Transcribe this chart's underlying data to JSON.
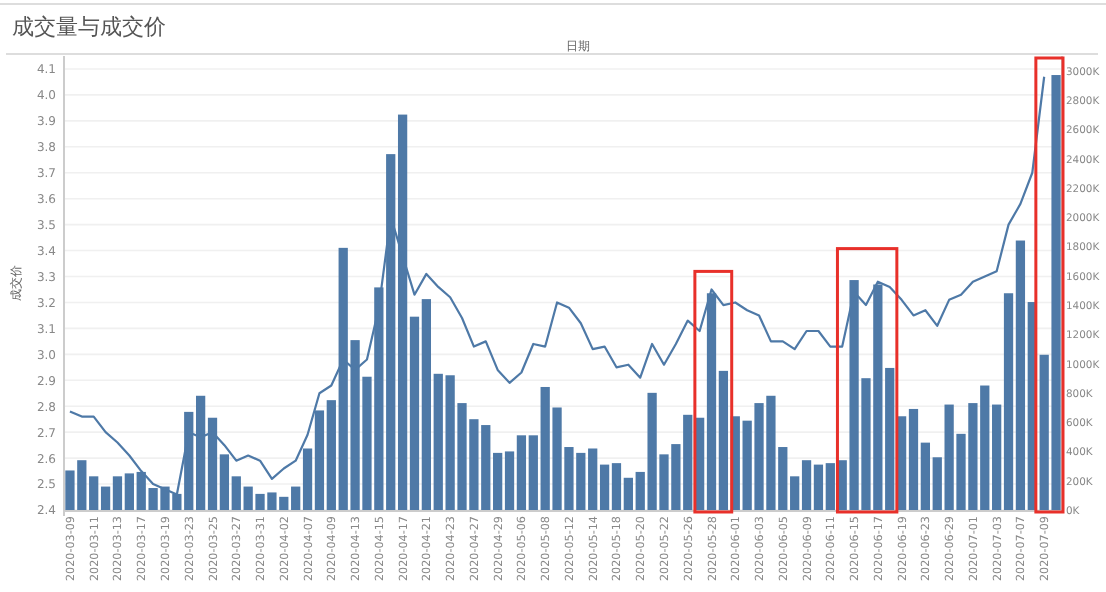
{
  "chart_data": {
    "type": "bar",
    "title": "成交量与成交价",
    "xlabel": "日期",
    "ylabel": "成交价",
    "categories": [
      "2020-03-09",
      null,
      "2020-03-11",
      null,
      "2020-03-13",
      null,
      "2020-03-17",
      null,
      "2020-03-19",
      null,
      "2020-03-23",
      null,
      "2020-03-25",
      null,
      "2020-03-27",
      null,
      "2020-03-31",
      null,
      "2020-04-02",
      null,
      "2020-04-07",
      null,
      "2020-04-09",
      null,
      "2020-04-13",
      null,
      "2020-04-15",
      null,
      "2020-04-17",
      null,
      "2020-04-21",
      null,
      "2020-04-23",
      null,
      "2020-04-27",
      null,
      "2020-04-29",
      null,
      "2020-05-06",
      null,
      "2020-05-08",
      null,
      "2020-05-12",
      null,
      "2020-05-14",
      null,
      "2020-05-18",
      null,
      "2020-05-20",
      null,
      "2020-05-22",
      null,
      "2020-05-26",
      null,
      "2020-05-28",
      null,
      "2020-06-01",
      null,
      "2020-06-03",
      null,
      "2020-06-05",
      null,
      "2020-06-09",
      null,
      "2020-06-11",
      null,
      "2020-06-15",
      null,
      "2020-06-17",
      null,
      "2020-06-19",
      null,
      "2020-06-23",
      null,
      "2020-06-29",
      null,
      "2020-07-01",
      null,
      "2020-07-03",
      null,
      "2020-07-07",
      null,
      "2020-07-09",
      null
    ],
    "series": [
      {
        "axis": "y2",
        "color": "#4e79a7",
        "values": [
          270,
          340,
          230,
          160,
          230,
          250,
          260,
          150,
          160,
          110,
          670,
          780,
          630,
          380,
          230,
          160,
          110,
          120,
          90,
          160,
          420,
          680,
          750,
          1790,
          1160,
          910,
          1520,
          2430,
          2700,
          1320,
          1440,
          930,
          920,
          730,
          620,
          580,
          390,
          400,
          510,
          510,
          840,
          700,
          430,
          390,
          420,
          310,
          320,
          220,
          260,
          800,
          380,
          450,
          650,
          630,
          1480,
          950,
          640,
          610,
          730,
          780,
          430,
          230,
          340,
          310,
          320,
          340,
          1570,
          900,
          1540,
          970,
          640,
          690,
          460,
          360,
          720,
          520,
          730,
          850,
          720,
          1480,
          1840,
          1420,
          1060,
          2970
        ]
      },
      {
        "type": "line",
        "axis": "y",
        "color": "#4e79a7",
        "values": [
          2.78,
          2.76,
          2.76,
          2.7,
          2.66,
          2.61,
          2.55,
          2.5,
          2.48,
          2.46,
          2.7,
          2.68,
          2.7,
          2.65,
          2.59,
          2.61,
          2.59,
          2.52,
          2.56,
          2.59,
          2.69,
          2.85,
          2.88,
          2.98,
          2.94,
          2.98,
          3.18,
          3.53,
          3.38,
          3.23,
          3.31,
          3.26,
          3.22,
          3.14,
          3.03,
          3.05,
          2.94,
          2.89,
          2.93,
          3.04,
          3.03,
          3.2,
          3.18,
          3.12,
          3.02,
          3.03,
          2.95,
          2.96,
          2.91,
          3.04,
          2.96,
          3.04,
          3.13,
          3.09,
          3.25,
          3.19,
          3.2,
          3.17,
          3.15,
          3.05,
          3.05,
          3.02,
          3.09,
          3.09,
          3.03,
          3.03,
          3.24,
          3.19,
          3.28,
          3.26,
          3.21,
          3.15,
          3.17,
          3.11,
          3.21,
          3.23,
          3.28,
          3.3,
          3.32,
          3.5,
          3.58,
          3.7,
          4.07,
          null
        ]
      }
    ],
    "ylim": [
      2.4,
      4.15
    ],
    "yticks": [
      2.4,
      2.5,
      2.6,
      2.7,
      2.8,
      2.9,
      {
        "value": 3,
        "label": "3.0"
      },
      3.1,
      3.2,
      3.3,
      3.4,
      3.5,
      3.6,
      3.7,
      3.8,
      3.9,
      {
        "value": 4,
        "label": "4.0"
      },
      4.1
    ],
    "y2lim": [
      0,
      3100
    ],
    "y2ticks": [
      {
        "value": 0,
        "label": "0K"
      },
      {
        "value": 200,
        "label": "200K"
      },
      {
        "value": 400,
        "label": "400K"
      },
      {
        "value": 600,
        "label": "600K"
      },
      {
        "value": 800,
        "label": "800K"
      },
      {
        "value": 1000,
        "label": "1000K"
      },
      {
        "value": 1200,
        "label": "1200K"
      },
      {
        "value": 1400,
        "label": "1400K"
      },
      {
        "value": 1600,
        "label": "1600K"
      },
      {
        "value": 1800,
        "label": "1800K"
      },
      {
        "value": 2000,
        "label": "2000K"
      },
      {
        "value": 2200,
        "label": "2200K"
      },
      {
        "value": 2400,
        "label": "2400K"
      },
      {
        "value": 2600,
        "label": "2600K"
      },
      {
        "value": 2800,
        "label": "2800K"
      },
      {
        "value": 3000,
        "label": "3000K"
      }
    ],
    "grid": "y"
  }
}
